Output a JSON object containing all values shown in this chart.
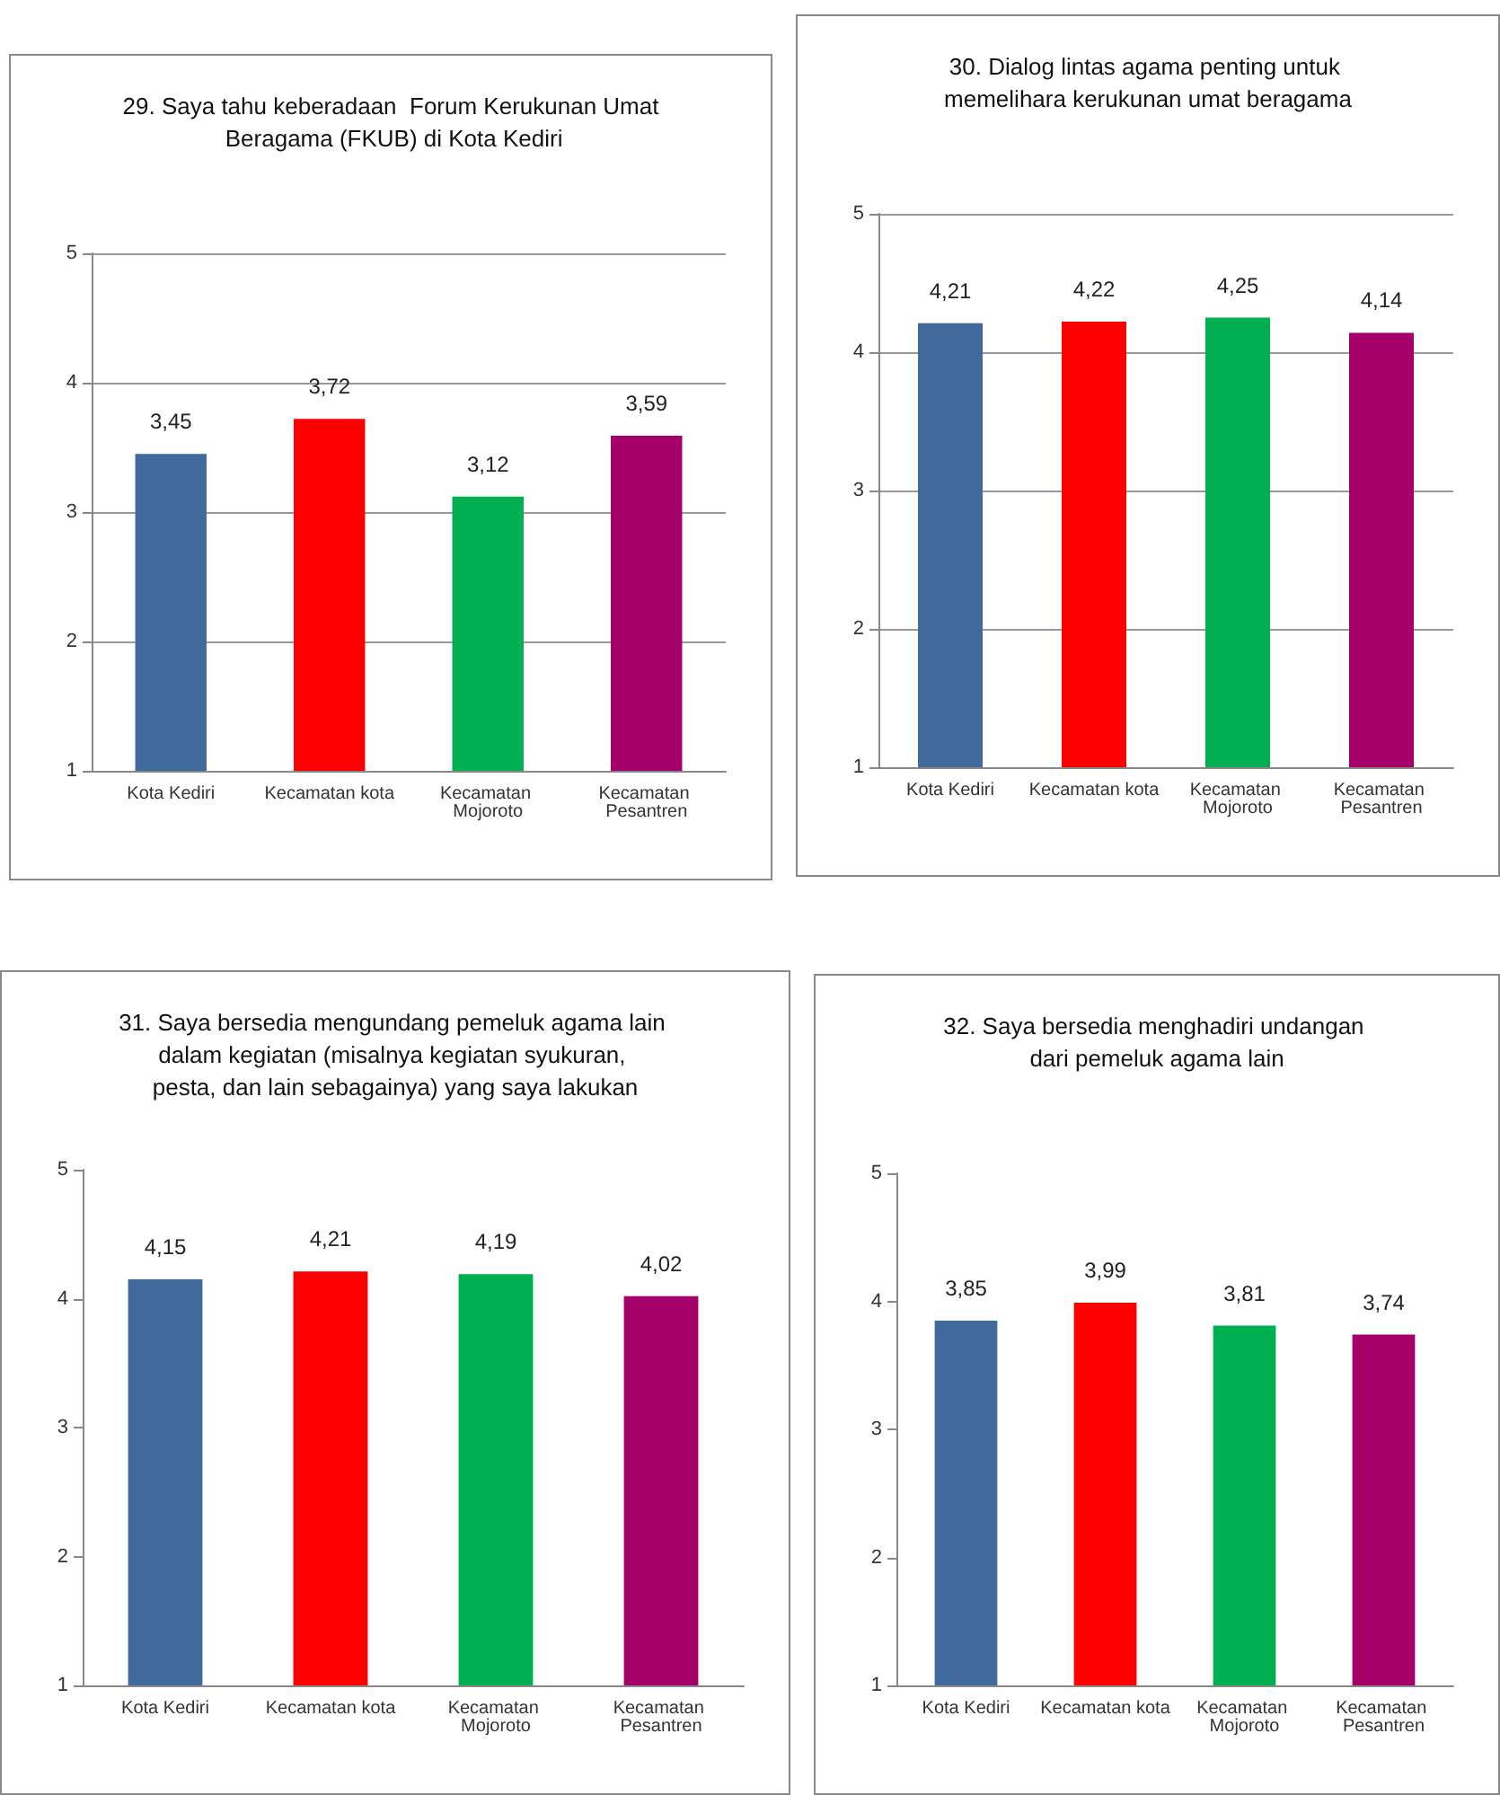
{
  "chart_data": [
    {
      "type": "bar",
      "title": "29. Saya tahu keberadaan  Forum Kerukunan Umat Beragama (FKUB) di Kota Kediri",
      "categories": [
        "Kota Kediri",
        "Kecamatan kota",
        "Kecamatan Mojoroto",
        "Kecamatan Pesantren"
      ],
      "values": [
        3.45,
        3.72,
        3.12,
        3.59
      ],
      "colors": [
        "#3f6a9b",
        "#ff0000",
        "#00b050",
        "#a5006a"
      ],
      "value_labels": [
        "3,45",
        "3,72",
        "3,12",
        "3,59"
      ],
      "ylim": [
        1,
        5
      ],
      "yticks": [
        1,
        2,
        3,
        4,
        5
      ],
      "grid": "y"
    },
    {
      "type": "bar",
      "title": "30. Dialog lintas agama penting untuk memelihara kerukunan umat beragama",
      "categories": [
        "Kota Kediri",
        "Kecamatan kota",
        "Kecamatan Mojoroto",
        "Kecamatan Pesantren"
      ],
      "values": [
        4.21,
        4.22,
        4.25,
        4.14
      ],
      "colors": [
        "#3f6a9b",
        "#ff0000",
        "#00b050",
        "#a5006a"
      ],
      "value_labels": [
        "4,21",
        "4,22",
        "4,25",
        "4,14"
      ],
      "ylim": [
        1,
        5
      ],
      "yticks": [
        1,
        2,
        3,
        4,
        5
      ],
      "grid": "y"
    },
    {
      "type": "bar",
      "title": "31. Saya bersedia mengundang pemeluk agama lain dalam kegiatan (misalnya kegiatan syukuran, pesta, dan lain sebagainya) yang saya lakukan",
      "categories": [
        "Kota Kediri",
        "Kecamatan kota",
        "Kecamatan Mojoroto",
        "Kecamatan Pesantren"
      ],
      "values": [
        4.15,
        4.21,
        4.19,
        4.02
      ],
      "colors": [
        "#3f6a9b",
        "#ff0000",
        "#00b050",
        "#a5006a"
      ],
      "value_labels": [
        "4,15",
        "4,21",
        "4,19",
        "4,02"
      ],
      "ylim": [
        1,
        5
      ],
      "yticks": [
        1,
        2,
        3,
        4,
        5
      ],
      "grid": false
    },
    {
      "type": "bar",
      "title": "32. Saya bersedia menghadiri undangan dari pemeluk agama lain",
      "categories": [
        "Kota Kediri",
        "Kecamatan kota",
        "Kecamatan Mojoroto",
        "Kecamatan Pesantren"
      ],
      "values": [
        3.85,
        3.99,
        3.81,
        3.74
      ],
      "colors": [
        "#3f6a9b",
        "#ff0000",
        "#00b050",
        "#a5006a"
      ],
      "value_labels": [
        "3,85",
        "3,99",
        "3,81",
        "3,74"
      ],
      "ylim": [
        1,
        5
      ],
      "yticks": [
        1,
        2,
        3,
        4,
        5
      ],
      "grid": false
    }
  ]
}
